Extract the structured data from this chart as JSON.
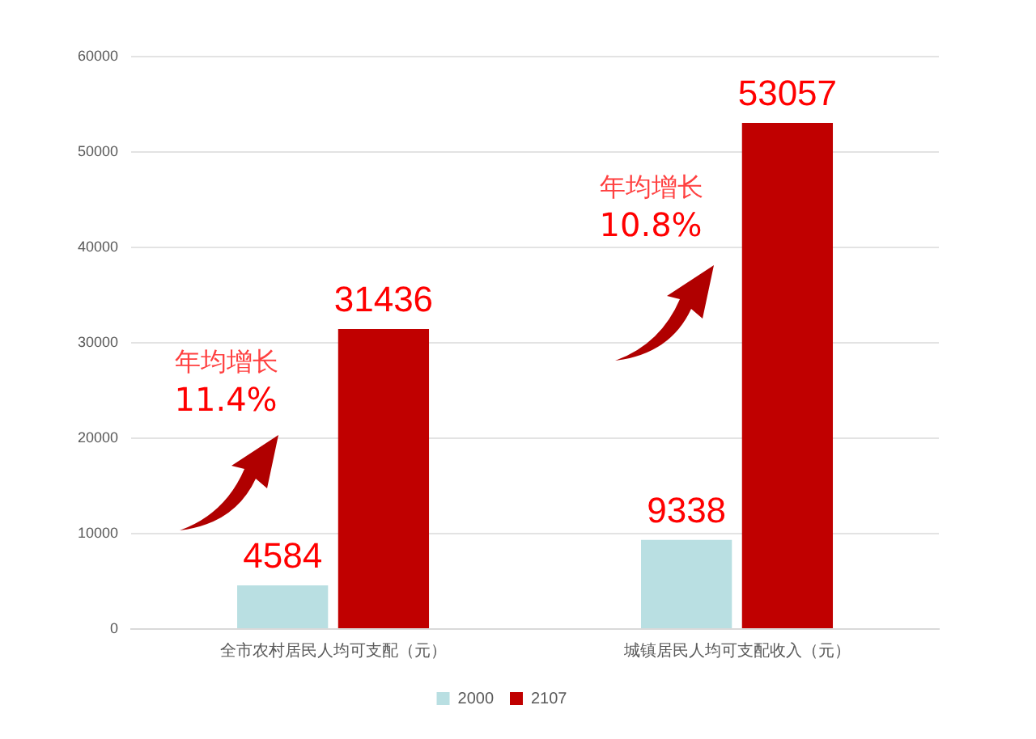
{
  "chart_data": {
    "type": "bar",
    "categories": [
      "全市农村居民人均可支配（元）",
      "城镇居民人均可支配收入（元）"
    ],
    "series": [
      {
        "name": "2000",
        "color": "#b9dfe2",
        "values": [
          4584,
          9338
        ]
      },
      {
        "name": "2107",
        "color": "#c00000",
        "values": [
          31436,
          53057
        ]
      }
    ],
    "ylim": [
      0,
      60000
    ],
    "yticks": [
      0,
      10000,
      20000,
      30000,
      40000,
      50000,
      60000
    ],
    "grid": "y",
    "legend": "bottom",
    "data_labels": true,
    "annotations": [
      "年均增长",
      "11.4%",
      "年均增长",
      "10.8%"
    ]
  }
}
